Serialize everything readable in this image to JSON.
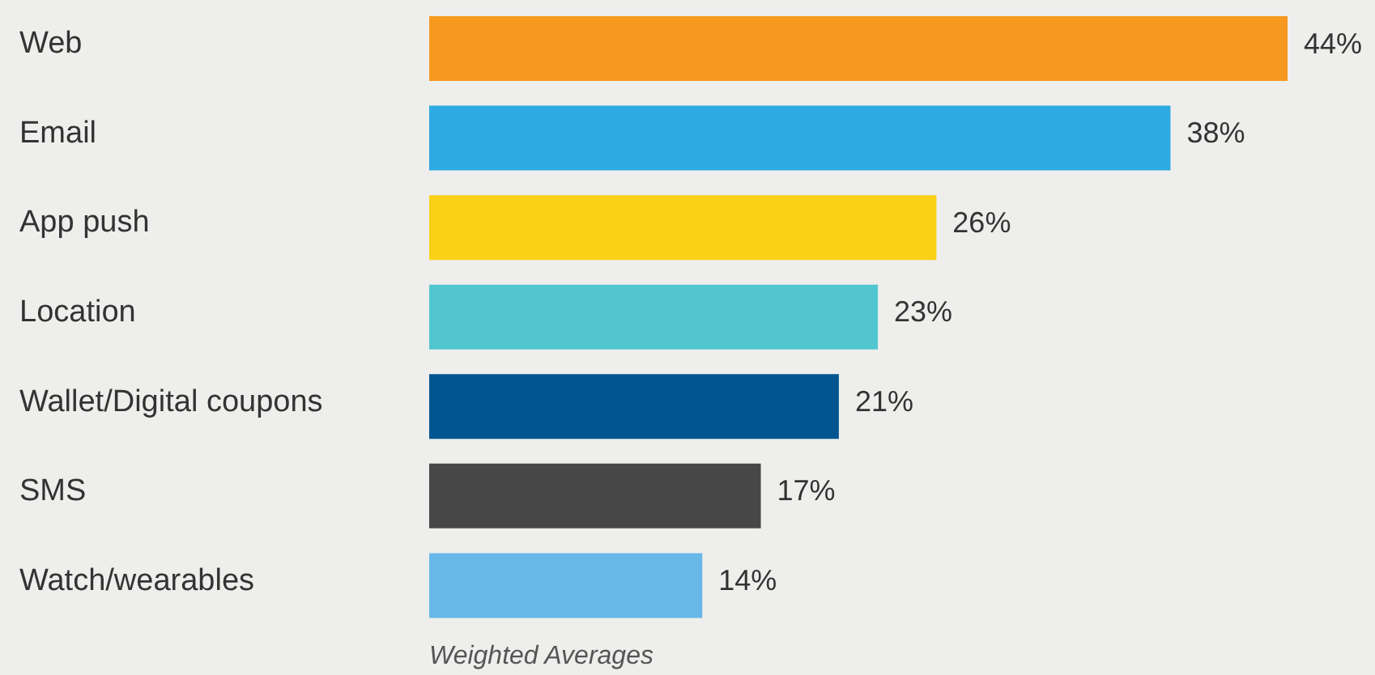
{
  "chart_data": {
    "type": "bar",
    "orientation": "horizontal",
    "categories": [
      "Web",
      "Email",
      "App push",
      "Location",
      "Wallet/Digital coupons",
      "SMS",
      "Watch/wearables"
    ],
    "values": [
      44,
      38,
      26,
      23,
      21,
      17,
      14
    ],
    "colors": [
      "#f7991f",
      "#2eaae3",
      "#f9d116",
      "#52c6cf",
      "#005590",
      "#474748",
      "#67b7e8"
    ],
    "value_labels": [
      "44%",
      "38%",
      "26%",
      "23%",
      "21%",
      "17%",
      "14%"
    ],
    "annotations": [
      "Weighted Averages"
    ],
    "grid": false,
    "legend": false
  }
}
